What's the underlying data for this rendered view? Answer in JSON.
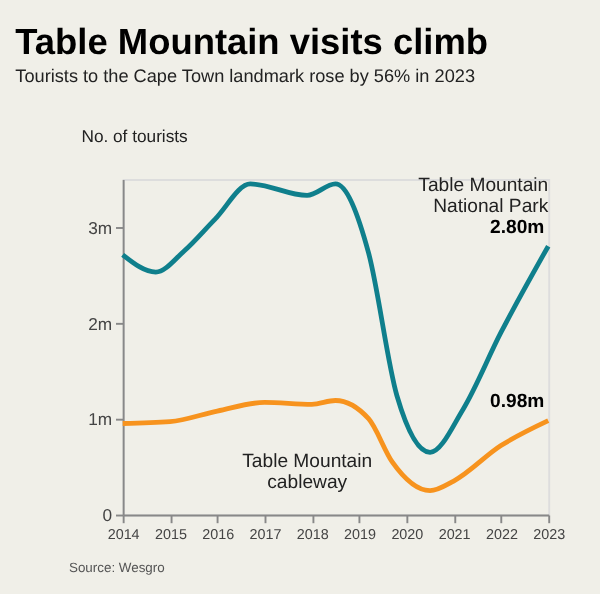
{
  "chart_data": {
    "type": "line",
    "title": "Table Mountain visits climb",
    "subtitle": "Tourists to the Cape Town landmark rose by 56% in 2023",
    "ylabel": "No. of tourists",
    "xlim": [
      2014,
      2023
    ],
    "xticks": [
      2014,
      2015,
      2016,
      2017,
      2018,
      2019,
      2020,
      2021,
      2022,
      2023
    ],
    "ylim": [
      0,
      3.5
    ],
    "yticks": [
      {
        "value": 0,
        "label": "0"
      },
      {
        "value": 1,
        "label": "1m"
      },
      {
        "value": 2,
        "label": "2m"
      },
      {
        "value": 3,
        "label": "3m"
      }
    ],
    "grid": false,
    "legend": false,
    "marker": "none",
    "line_style": "solid",
    "series": [
      {
        "name": "Table Mountain National Park",
        "color": "#0f7f8c",
        "x": [
          2014,
          2014.7,
          2015.3,
          2015.95,
          2016.7,
          2017.9,
          2018.5,
          2019.2,
          2019.8,
          2020.5,
          2021.2,
          2022,
          2023
        ],
        "values": [
          2.71,
          2.53,
          2.75,
          3.08,
          3.45,
          3.33,
          3.45,
          2.73,
          1.24,
          0.65,
          1.1,
          1.9,
          2.8
        ],
        "value_labels": [
          null,
          null,
          null,
          null,
          null,
          null,
          null,
          null,
          null,
          null,
          null,
          null,
          "2.80m"
        ]
      },
      {
        "name": "Table Mountain cableway",
        "color": "#f7931e",
        "x": [
          2014,
          2015,
          2016,
          2017,
          2018,
          2018.5,
          2019.2,
          2019.7,
          2020.5,
          2021,
          2022,
          2023
        ],
        "values": [
          0.95,
          0.97,
          1.08,
          1.17,
          1.15,
          1.19,
          1.0,
          0.55,
          0.25,
          0.35,
          0.72,
          0.98
        ],
        "value_labels": [
          null,
          null,
          null,
          null,
          null,
          null,
          null,
          null,
          null,
          null,
          null,
          "0.98m"
        ]
      }
    ],
    "annotations": [
      "Source: Wesgro"
    ]
  }
}
